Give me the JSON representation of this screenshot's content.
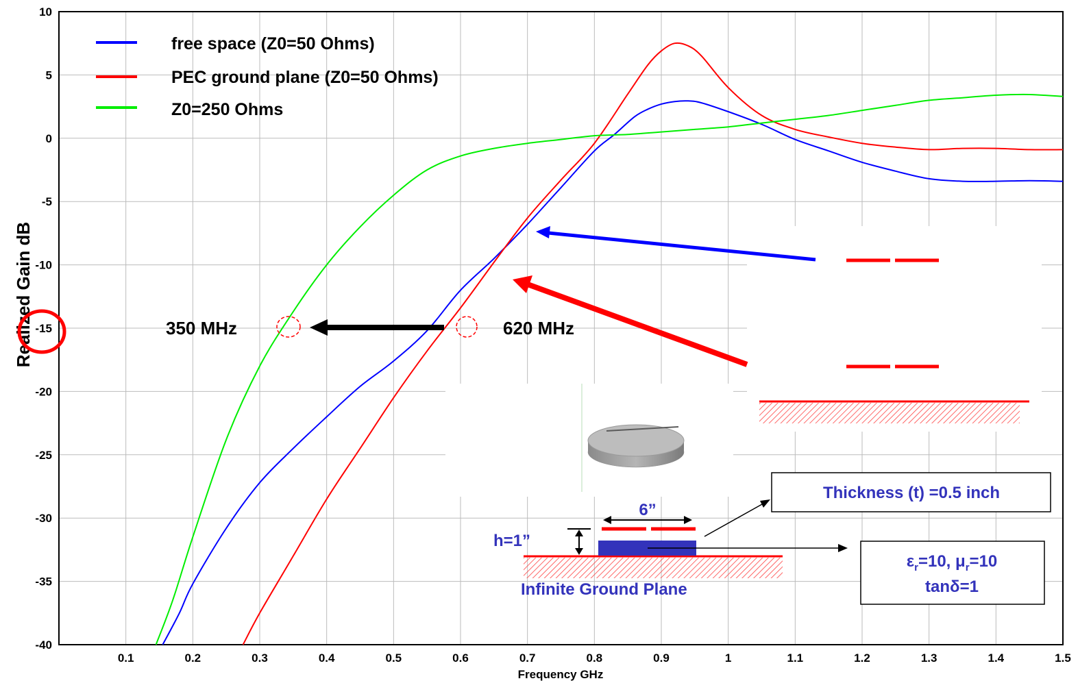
{
  "chart_data": {
    "type": "line",
    "xlabel": "Frequency GHz",
    "ylabel": "Realized Gain dB",
    "xlim": [
      0,
      1.5
    ],
    "ylim": [
      -40,
      10
    ],
    "xticks": [
      0.1,
      0.2,
      0.3,
      0.4,
      0.5,
      0.6,
      0.7,
      0.8,
      0.9,
      1,
      1.1,
      1.2,
      1.3,
      1.4,
      1.5
    ],
    "xtick_labels": [
      "0.1",
      "0.2",
      "0.3",
      "0.4",
      "0.5",
      "0.6",
      "0.7",
      "0.8",
      "0.9",
      "1",
      "1.1",
      "1.2",
      "1.3",
      "1.4",
      "1.5"
    ],
    "yticks": [
      10,
      5,
      0,
      -5,
      -10,
      -15,
      -20,
      -25,
      -30,
      -35,
      -40
    ],
    "ytick_labels": [
      "10",
      "5",
      "0",
      "-5",
      "-10",
      "-15",
      "-20",
      "-25",
      "-30",
      "-35",
      "-40"
    ],
    "grid": true,
    "legend_position": "top-left",
    "series": [
      {
        "name": "free space (Z0=50 Ohms)",
        "color": "#0000ff",
        "x": [
          0.155,
          0.18,
          0.2,
          0.25,
          0.3,
          0.35,
          0.4,
          0.45,
          0.5,
          0.55,
          0.6,
          0.65,
          0.7,
          0.75,
          0.8,
          0.83,
          0.86,
          0.88,
          0.9,
          0.92,
          0.94,
          0.96,
          1.0,
          1.05,
          1.1,
          1.15,
          1.2,
          1.25,
          1.3,
          1.35,
          1.4,
          1.45,
          1.5
        ],
        "y": [
          -40,
          -37.5,
          -35.2,
          -30.8,
          -27.2,
          -24.5,
          -22,
          -19.6,
          -17.6,
          -15.2,
          -12,
          -9.5,
          -6.8,
          -3.9,
          -1.0,
          0.3,
          1.7,
          2.3,
          2.7,
          2.9,
          2.95,
          2.8,
          2.1,
          1.1,
          -0.1,
          -1.0,
          -1.9,
          -2.6,
          -3.2,
          -3.4,
          -3.4,
          -3.35,
          -3.4
        ]
      },
      {
        "name": "PEC ground plane (Z0=50 Ohms)",
        "color": "#ff0000",
        "x": [
          0.275,
          0.3,
          0.35,
          0.4,
          0.45,
          0.5,
          0.55,
          0.6,
          0.65,
          0.7,
          0.75,
          0.8,
          0.85,
          0.88,
          0.9,
          0.92,
          0.94,
          0.96,
          1.0,
          1.05,
          1.1,
          1.15,
          1.2,
          1.25,
          1.3,
          1.35,
          1.4,
          1.45,
          1.5
        ],
        "y": [
          -40,
          -37.5,
          -33,
          -28.5,
          -24.5,
          -20.5,
          -16.8,
          -13.4,
          -9.8,
          -6.3,
          -3.3,
          -0.4,
          3.5,
          5.8,
          6.9,
          7.5,
          7.3,
          6.5,
          4.0,
          1.8,
          0.7,
          0.1,
          -0.4,
          -0.7,
          -0.9,
          -0.8,
          -0.8,
          -0.9,
          -0.9
        ]
      },
      {
        "name": "Z0=250 Ohms",
        "color": "#00ee00",
        "x": [
          0.145,
          0.17,
          0.2,
          0.25,
          0.3,
          0.35,
          0.4,
          0.45,
          0.5,
          0.55,
          0.6,
          0.65,
          0.7,
          0.75,
          0.8,
          0.85,
          0.9,
          0.95,
          1.0,
          1.05,
          1.1,
          1.15,
          1.2,
          1.25,
          1.3,
          1.35,
          1.4,
          1.45,
          1.5
        ],
        "y": [
          -40,
          -36.5,
          -31.5,
          -23.8,
          -18,
          -13.7,
          -10,
          -7.0,
          -4.5,
          -2.5,
          -1.4,
          -0.8,
          -0.4,
          -0.1,
          0.2,
          0.3,
          0.5,
          0.7,
          0.9,
          1.2,
          1.5,
          1.8,
          2.2,
          2.6,
          3.0,
          3.2,
          3.4,
          3.45,
          3.3
        ]
      }
    ],
    "annotations": {
      "label_350": "350 MHz",
      "label_620": "620 MHz",
      "thickness": "Thickness (t) =0.5 inch",
      "width": "6”",
      "height": "h=1”",
      "ground": "Infinite Ground Plane",
      "material_eps_symbol": "ε",
      "material_eps_sub": "r",
      "material_eps_val": "=10, ",
      "material_mu_symbol": "μ",
      "material_mu_sub": "r",
      "material_mu_val": "=10",
      "material_loss": "tanδ=1"
    }
  }
}
